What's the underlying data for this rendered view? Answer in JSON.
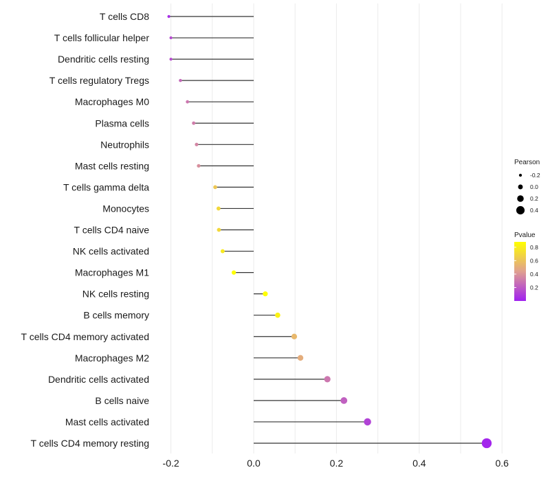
{
  "chart_data": {
    "type": "lollipop",
    "title": "",
    "xlabel": "",
    "ylabel": "",
    "xlim": [
      -0.22,
      0.62
    ],
    "x_ticks": [
      -0.2,
      0.0,
      0.2,
      0.4,
      0.6
    ],
    "x_tick_labels": [
      "-0.2",
      "0.0",
      "0.2",
      "0.4",
      "0.6"
    ],
    "grid": true,
    "categories": [
      "T cells CD8",
      "T cells follicular helper",
      "Dendritic cells resting",
      "T cells regulatory  Tregs",
      "Macrophages M0",
      "Plasma cells",
      "Neutrophils",
      "Mast cells resting",
      "T cells gamma delta",
      "Monocytes",
      "T cells CD4 naive",
      "NK cells activated",
      "Macrophages M1",
      "NK cells resting",
      "B cells memory",
      "T cells CD4 memory activated",
      "Macrophages M2",
      "Dendritic cells activated",
      "B cells naive",
      "Mast cells activated",
      "T cells CD4 memory resting"
    ],
    "pearson": [
      -0.205,
      -0.2,
      -0.2,
      -0.177,
      -0.16,
      -0.145,
      -0.138,
      -0.133,
      -0.093,
      -0.085,
      -0.084,
      -0.075,
      -0.048,
      0.028,
      0.058,
      0.098,
      0.113,
      0.178,
      0.218,
      0.275,
      0.563
    ],
    "pvalue": [
      0.05,
      0.15,
      0.15,
      0.25,
      0.3,
      0.32,
      0.35,
      0.38,
      0.62,
      0.7,
      0.7,
      0.78,
      0.88,
      0.9,
      0.82,
      0.55,
      0.5,
      0.3,
      0.22,
      0.12,
      0.02
    ],
    "legend": {
      "size_title": "Pearson",
      "size_labels": [
        "-0.2",
        "0.0",
        "0.2",
        "0.4"
      ],
      "size_values": [
        -0.2,
        0.0,
        0.2,
        0.4
      ],
      "color_title": "Pvalue",
      "color_labels": [
        "0.8",
        "0.6",
        "0.4",
        "0.2"
      ],
      "color_values": [
        0.8,
        0.6,
        0.4,
        0.2
      ],
      "color_range": [
        0.0,
        0.88
      ],
      "placement": "right"
    },
    "colors": {
      "low": "#a020f0",
      "mid": "#e0a090",
      "high": "#ffff00",
      "segment": "#333333",
      "grid": "#ebebeb"
    }
  }
}
